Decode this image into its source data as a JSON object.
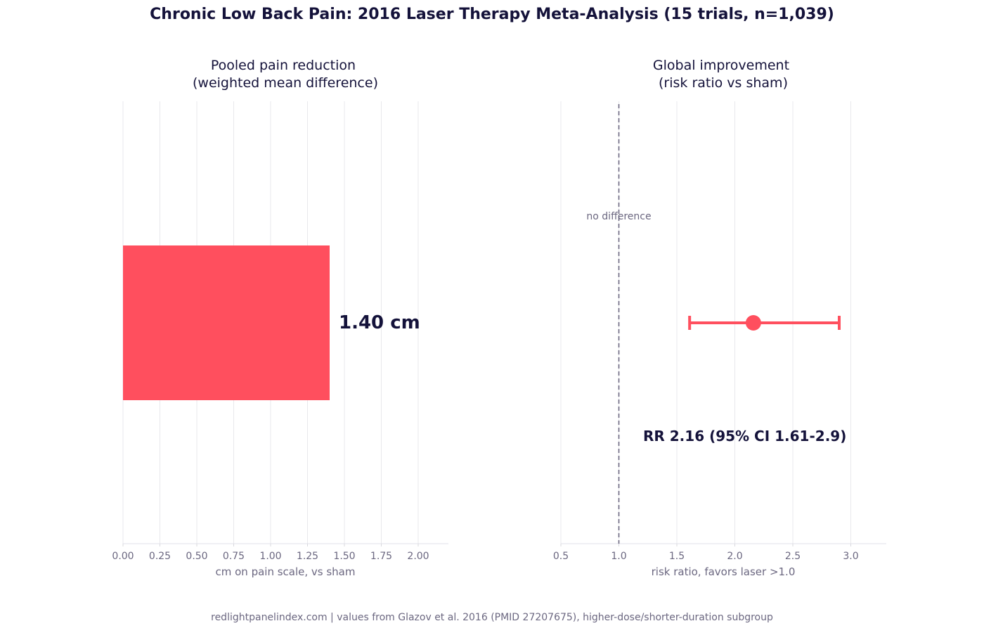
{
  "figure": {
    "title": "Chronic Low Back Pain: 2016 Laser Therapy Meta-Analysis (15 trials, n=1,039)",
    "footer": "redlightpanelindex.com | values from Glazov et al. 2016 (PMID 27207675), higher-dose/shorter-duration subgroup",
    "accent_color": "#ff4f5e",
    "text_color": "#14123a",
    "muted_color": "#6b6780"
  },
  "chart_data": [
    {
      "type": "bar",
      "orientation": "horizontal",
      "title_line1": "Pooled pain reduction",
      "title_line2": "(weighted mean difference)",
      "xlabel": "cm on pain scale, vs sham",
      "ylabel": "",
      "xlim": [
        0,
        2.2
      ],
      "xticks": [
        "0.00",
        "0.25",
        "0.50",
        "0.75",
        "1.00",
        "1.25",
        "1.50",
        "1.75",
        "2.00"
      ],
      "grid": "vertical",
      "values": [
        1.4
      ],
      "value_label": "1.40 cm",
      "color": "#ff4f5e"
    },
    {
      "type": "scatter",
      "subtype": "forest-point-with-ci",
      "title_line1": "Global improvement",
      "title_line2": "(risk ratio vs sham)",
      "xlabel": "risk ratio, favors laser >1.0",
      "ylabel": "",
      "xlim": [
        0.5,
        3.3
      ],
      "xticks": [
        "0.5",
        "1.0",
        "1.5",
        "2.0",
        "2.5",
        "3.0"
      ],
      "grid": "vertical",
      "point": 2.16,
      "ci_low": 1.61,
      "ci_high": 2.9,
      "reference_value": 1.0,
      "reference_label": "no difference",
      "effect_label": "RR 2.16  (95% CI 1.61-2.9)",
      "color": "#ff4f5e"
    }
  ]
}
